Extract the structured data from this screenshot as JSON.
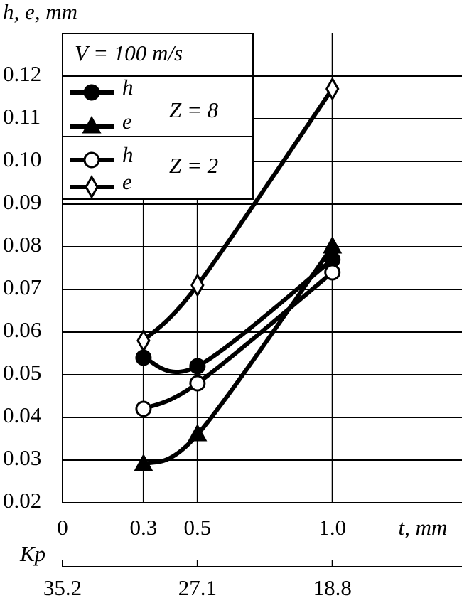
{
  "chart_data": {
    "type": "line",
    "y_label": "h, e, mm",
    "x_label": "t, mm",
    "x2_label": "Kp",
    "legend_title": "V = 100 m/s",
    "group_labels": [
      "Z = 8",
      "Z = 2"
    ],
    "x": [
      0.3,
      0.5,
      1.0
    ],
    "series": [
      {
        "name": "h",
        "group": 0,
        "marker": "filled-circle",
        "color": "#000000",
        "values": [
          0.054,
          0.052,
          0.077
        ]
      },
      {
        "name": "e",
        "group": 0,
        "marker": "filled-triangle",
        "color": "#000000",
        "values": [
          0.029,
          0.036,
          0.08
        ]
      },
      {
        "name": "h",
        "group": 1,
        "marker": "open-circle",
        "color": "#000000",
        "values": [
          0.042,
          0.048,
          0.074
        ]
      },
      {
        "name": "e",
        "group": 1,
        "marker": "open-diamond",
        "color": "#000000",
        "values": [
          0.058,
          0.071,
          0.117
        ]
      }
    ],
    "xlim": [
      0,
      1.48
    ],
    "xticks": [
      0,
      0.3,
      0.5,
      {
        "value": 1,
        "label": "1.0"
      }
    ],
    "x2ticks": [
      {
        "value": 0,
        "label": "35.2"
      },
      {
        "value": 0.5,
        "label": "27.1"
      },
      {
        "value": 1,
        "label": "18.8"
      }
    ],
    "ylim": [
      0.02,
      0.13
    ],
    "yticks": [
      0.02,
      0.03,
      0.04,
      0.05,
      0.06,
      0.07,
      0.08,
      0.09,
      {
        "value": 0.1,
        "label": "0.10"
      },
      0.11,
      0.12
    ],
    "grid": true
  }
}
